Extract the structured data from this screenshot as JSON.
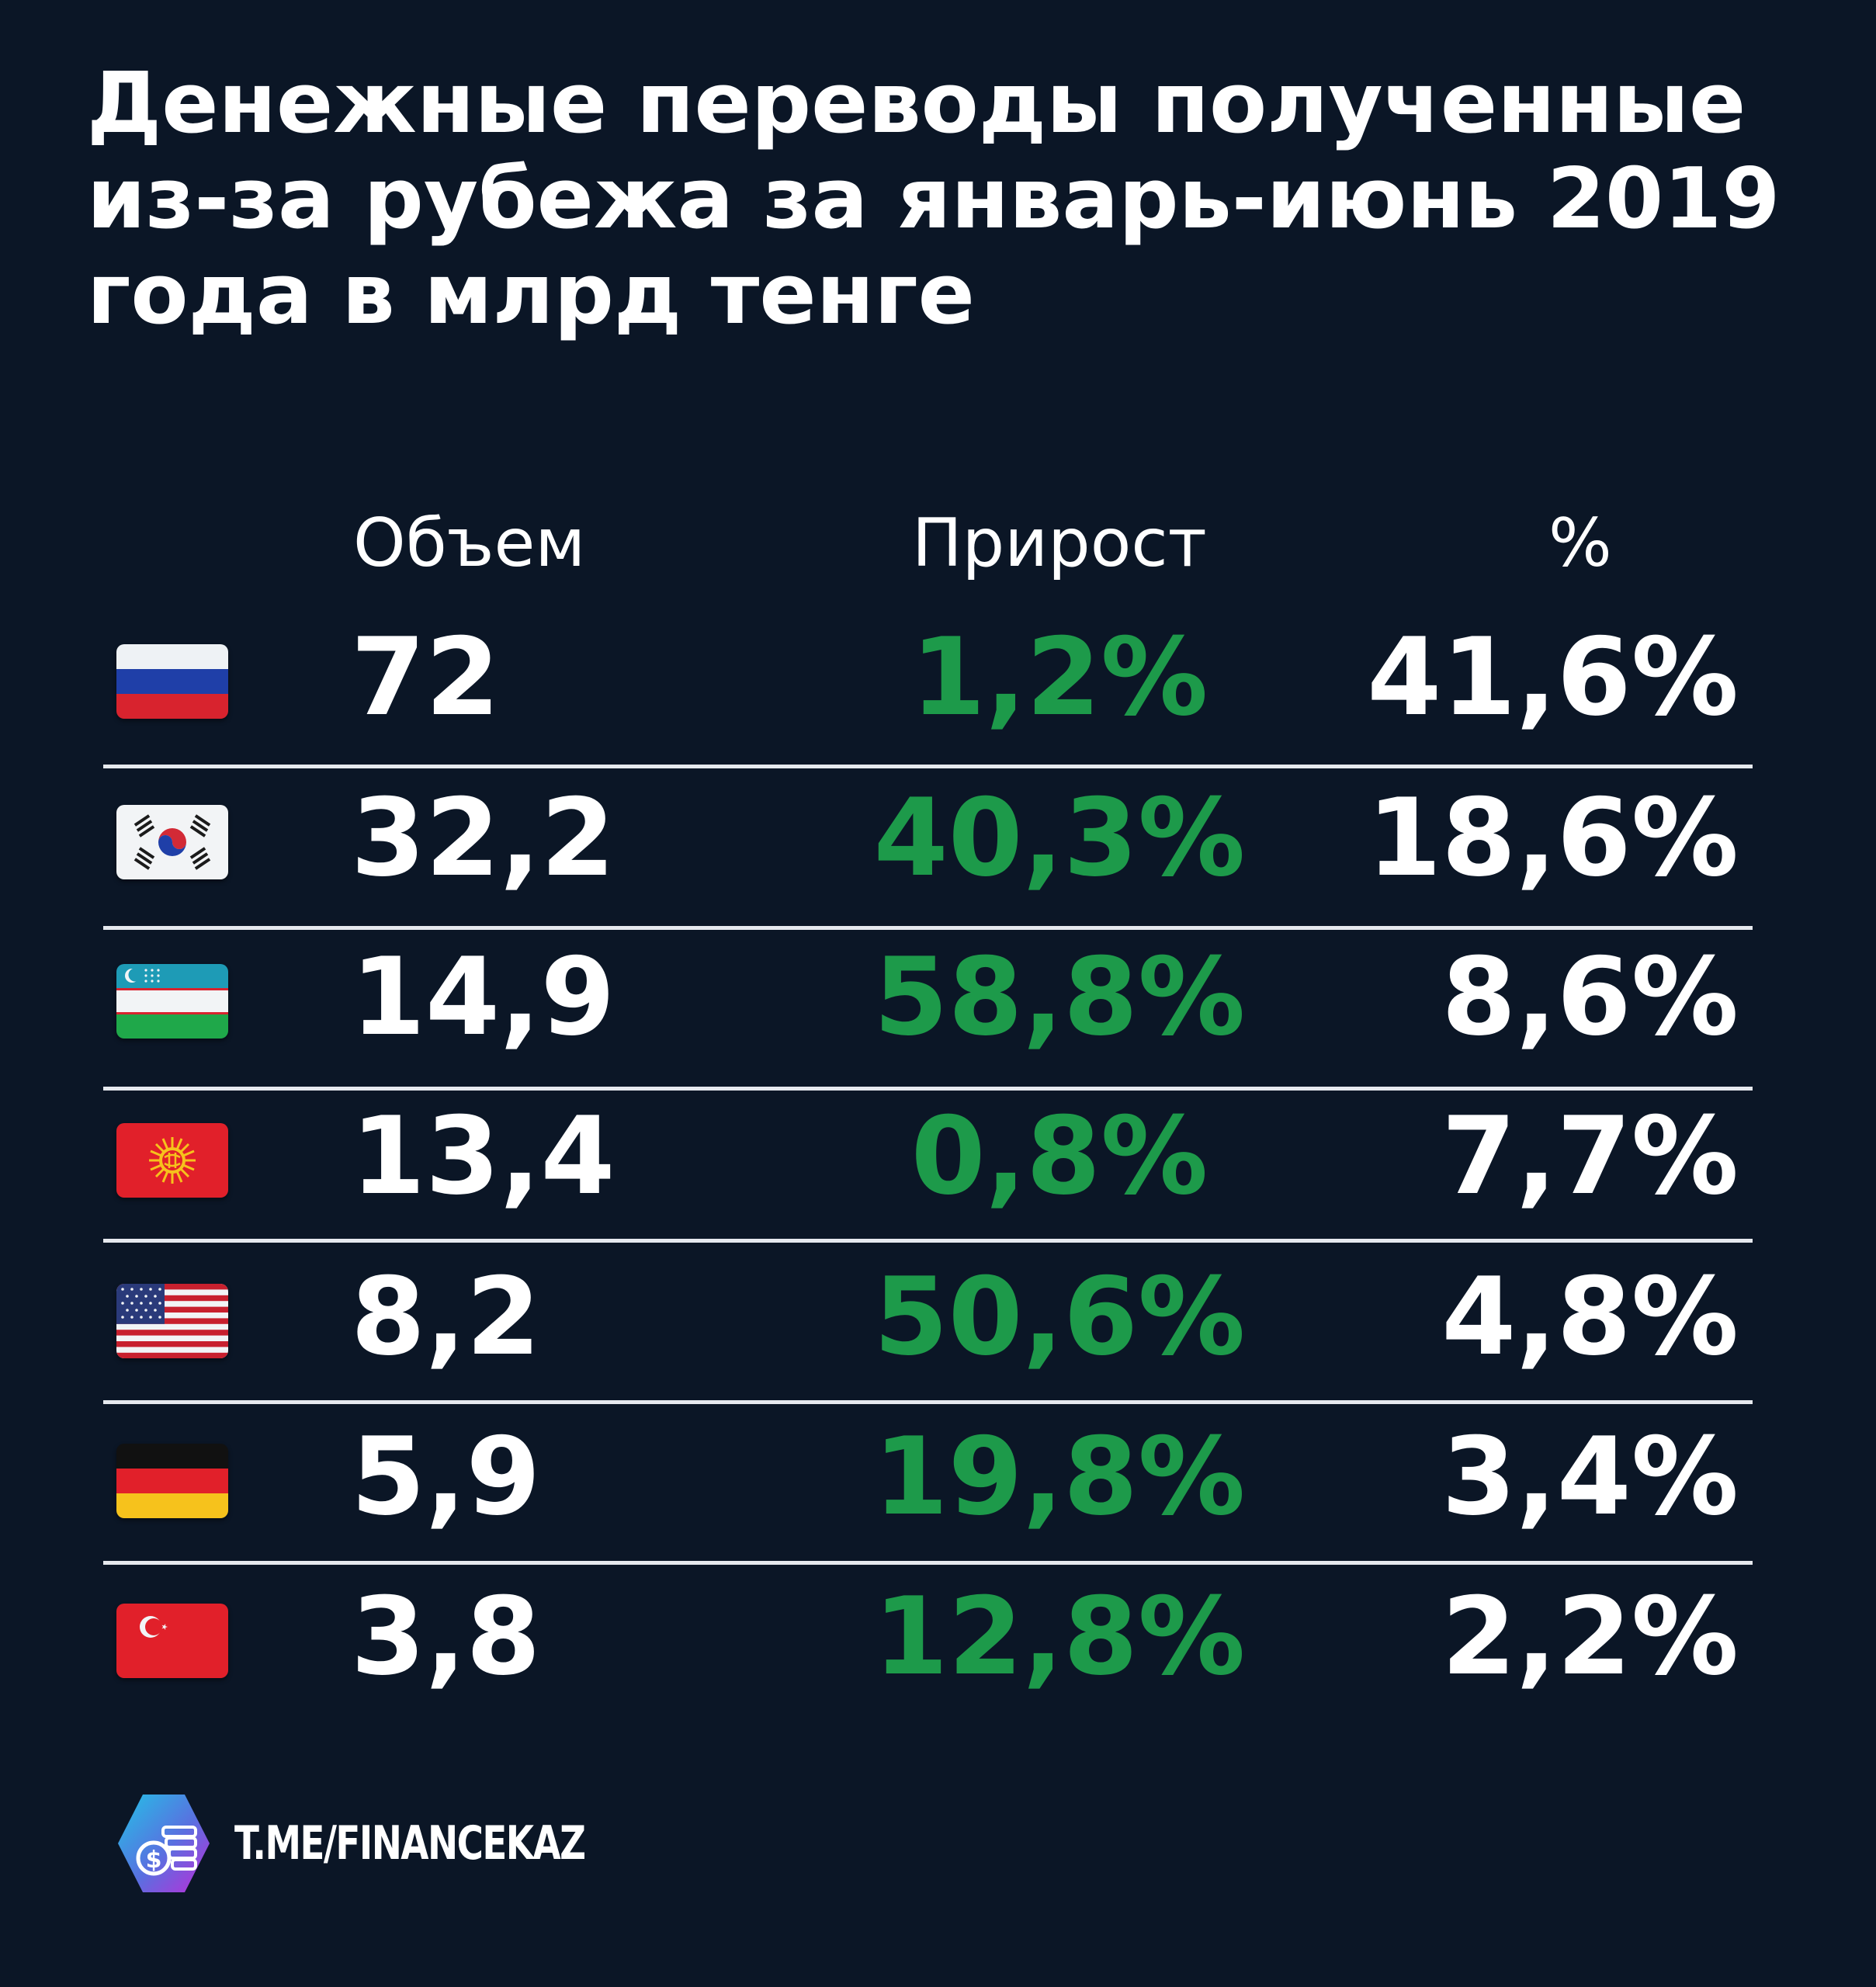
{
  "chart_data": {
    "type": "table",
    "title_lines": [
      "Денежные переводы полученные",
      "из-за рубежа за январь-июнь 2019",
      "года в млрд тенге"
    ],
    "columns": [
      "Объем",
      "Прирост",
      "%"
    ],
    "rows": [
      {
        "flag_icon": "russia-flag-icon",
        "volume": "72",
        "growth": "1,2%",
        "share": "41,6%"
      },
      {
        "flag_icon": "south-korea-flag-icon",
        "volume": "32,2",
        "growth": "40,3%",
        "share": "18,6%"
      },
      {
        "flag_icon": "uzbekistan-flag-icon",
        "volume": "14,9",
        "growth": "58,8%",
        "share": "8,6%"
      },
      {
        "flag_icon": "kyrgyzstan-flag-icon",
        "volume": "13,4",
        "growth": "0,8%",
        "share": "7,7%"
      },
      {
        "flag_icon": "usa-flag-icon",
        "volume": "8,2",
        "growth": "50,6%",
        "share": "4,8%"
      },
      {
        "flag_icon": "germany-flag-icon",
        "volume": "5,9",
        "growth": "19,8%",
        "share": "3,4%"
      },
      {
        "flag_icon": "turkey-flag-icon",
        "volume": "3,8",
        "growth": "12,8%",
        "share": "2,2%"
      }
    ],
    "colors": {
      "background": "#0b1626",
      "growth": "#1d9a4a",
      "text": "#ffffff"
    }
  },
  "footer": {
    "logo_icon": "financekaz-logo-icon",
    "link": "T.ME/FINANCEKAZ"
  }
}
